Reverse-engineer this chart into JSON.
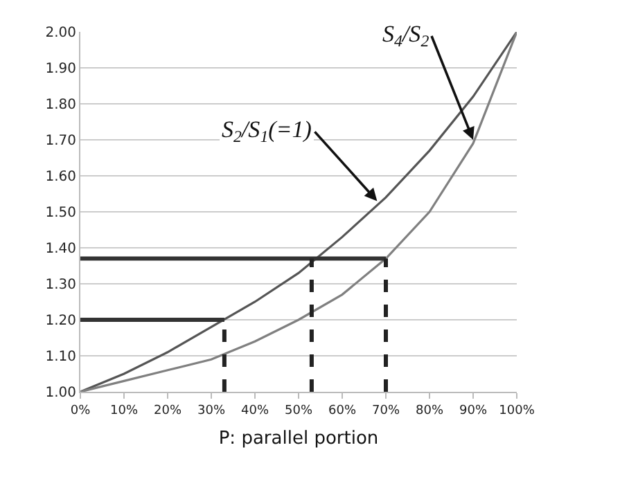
{
  "chart_data": {
    "type": "line",
    "xlabel": "P: parallel portion",
    "x": [
      0,
      10,
      20,
      30,
      40,
      50,
      60,
      70,
      80,
      90,
      100
    ],
    "xlim": [
      0,
      100
    ],
    "xticks": [
      {
        "value": 0,
        "label": "0%"
      },
      {
        "value": 10,
        "label": "10%"
      },
      {
        "value": 20,
        "label": "20%"
      },
      {
        "value": 30,
        "label": "30%"
      },
      {
        "value": 40,
        "label": "40%"
      },
      {
        "value": 50,
        "label": "50%"
      },
      {
        "value": 60,
        "label": "60%"
      },
      {
        "value": 70,
        "label": "70%"
      },
      {
        "value": 80,
        "label": "80%"
      },
      {
        "value": 90,
        "label": "90%"
      },
      {
        "value": 100,
        "label": "100%"
      }
    ],
    "ylim": [
      1,
      2
    ],
    "yticks": [
      {
        "value": 1,
        "label": "1.00"
      },
      {
        "value": 1.1,
        "label": "1.10"
      },
      {
        "value": 1.2,
        "label": "1.20"
      },
      {
        "value": 1.3,
        "label": "1.30"
      },
      {
        "value": 1.4,
        "label": "1.40"
      },
      {
        "value": 1.5,
        "label": "1.50"
      },
      {
        "value": 1.6,
        "label": "1.60"
      },
      {
        "value": 1.7,
        "label": "1.70"
      },
      {
        "value": 1.8,
        "label": "1.80"
      },
      {
        "value": 1.9,
        "label": "1.90"
      },
      {
        "value": 2,
        "label": "2.00"
      }
    ],
    "grid": "y",
    "marker": "none",
    "series": [
      {
        "color": "#555555",
        "values": [
          1.0,
          1.05,
          1.11,
          1.18,
          1.25,
          1.33,
          1.43,
          1.54,
          1.67,
          1.82,
          2.0
        ]
      },
      {
        "color": "#808080",
        "values": [
          1.0,
          1.03,
          1.06,
          1.09,
          1.14,
          1.2,
          1.27,
          1.37,
          1.5,
          1.69,
          2.0
        ]
      },
      {
        "color": "#333333",
        "x": [
          0,
          33
        ],
        "values": [
          1.2,
          1.2
        ],
        "line_style": "solid"
      },
      {
        "color": "#333333",
        "x": [
          0,
          70
        ],
        "values": [
          1.37,
          1.37
        ],
        "line_style": "solid"
      },
      {
        "color": "#222222",
        "x": [
          33,
          33
        ],
        "values": [
          1.0,
          1.2
        ],
        "line_style": "dashed"
      },
      {
        "color": "#222222",
        "x": [
          53,
          53
        ],
        "values": [
          1.0,
          1.37
        ],
        "line_style": "dashed"
      },
      {
        "color": "#222222",
        "x": [
          70,
          70
        ],
        "values": [
          1.0,
          1.37
        ],
        "line_style": "dashed"
      }
    ],
    "annotations": [
      {
        "text": "S$_{4}$/S$_{2}$",
        "x": 90,
        "y": 1.7
      },
      {
        "text": "S$_{2}$/S$_{1}$(=1)",
        "x": 68,
        "y": 1.53
      }
    ]
  }
}
